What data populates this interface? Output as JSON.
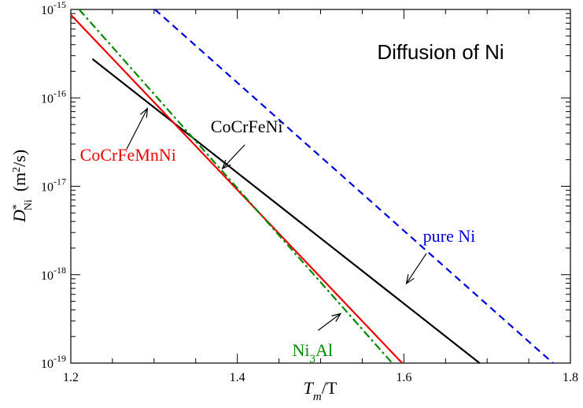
{
  "chart_data": {
    "type": "line",
    "title": "Diffusion of Ni",
    "xlabel": {
      "main": "T",
      "sub": "m",
      "rest": "/T"
    },
    "ylabel": {
      "main": "D",
      "sup": "*",
      "sub": "Ni",
      "units": "(m",
      "units_sup": "2",
      "units_end": "/s)"
    },
    "xlim": [
      1.2,
      1.8
    ],
    "ylim_log10": [
      -19,
      -15
    ],
    "x_ticks": [
      {
        "value": 1.2,
        "label": "1.2"
      },
      {
        "value": 1.4,
        "label": "1.4"
      },
      {
        "value": 1.6,
        "label": "1.6"
      },
      {
        "value": 1.8,
        "label": "1.8"
      }
    ],
    "y_ticks": [
      {
        "exp": -15,
        "base": "10",
        "exponent": "-15"
      },
      {
        "exp": -16,
        "base": "10",
        "exponent": "-16"
      },
      {
        "exp": -17,
        "base": "10",
        "exponent": "-17"
      },
      {
        "exp": -18,
        "base": "10",
        "exponent": "-18"
      },
      {
        "exp": -19,
        "base": "10",
        "exponent": "-19"
      }
    ],
    "series": [
      {
        "name": "pure Ni",
        "color": "#0000dd",
        "dash": "dashed",
        "points": [
          [
            1.301,
            -15.0
          ],
          [
            1.779,
            -19.0
          ]
        ]
      },
      {
        "name": "CoCrFeNi",
        "color": "#000000",
        "dash": "solid",
        "points": [
          [
            1.226,
            -15.56
          ],
          [
            1.691,
            -19.0
          ]
        ]
      },
      {
        "name": "CoCrFeMnNi",
        "color": "#ee0000",
        "dash": "solid",
        "points": [
          [
            1.2,
            -15.06
          ],
          [
            1.598,
            -19.0
          ]
        ]
      },
      {
        "name": "Ni3Al",
        "color": "#008800",
        "dash": "dashdot",
        "points": [
          [
            1.21,
            -15.0
          ],
          [
            1.586,
            -19.0
          ]
        ]
      }
    ],
    "annotations": [
      {
        "id": "ann-pure-ni",
        "series": "pure Ni",
        "text": "pure Ni",
        "color": "#0000dd",
        "label_at": [
          1.623,
          -17.63
        ],
        "arrow_from": [
          1.627,
          -17.76
        ],
        "arrow_to": [
          1.603,
          -18.1
        ]
      },
      {
        "id": "ann-cocrfeni",
        "series": "CoCrFeNi",
        "text": "CoCrFeNi",
        "color": "#000000",
        "label_at": [
          1.368,
          -16.39
        ],
        "arrow_from": [
          1.409,
          -16.53
        ],
        "arrow_to": [
          1.382,
          -16.8
        ]
      },
      {
        "id": "ann-cocrfemnni",
        "series": "CoCrFeMnNi",
        "text": "CoCrFeMnNi",
        "color": "#ee0000",
        "label_at": [
          1.211,
          -16.71
        ],
        "arrow_from": [
          1.267,
          -16.58
        ],
        "arrow_to": [
          1.292,
          -16.12
        ]
      },
      {
        "id": "ann-ni3al",
        "series": "Ni3Al",
        "text": "Ni",
        "text_sub": "3",
        "text_end": "Al",
        "color": "#008800",
        "label_at": [
          1.466,
          -18.92
        ],
        "arrow_from": [
          1.497,
          -18.63
        ],
        "arrow_to": [
          1.524,
          -18.44
        ]
      }
    ]
  }
}
